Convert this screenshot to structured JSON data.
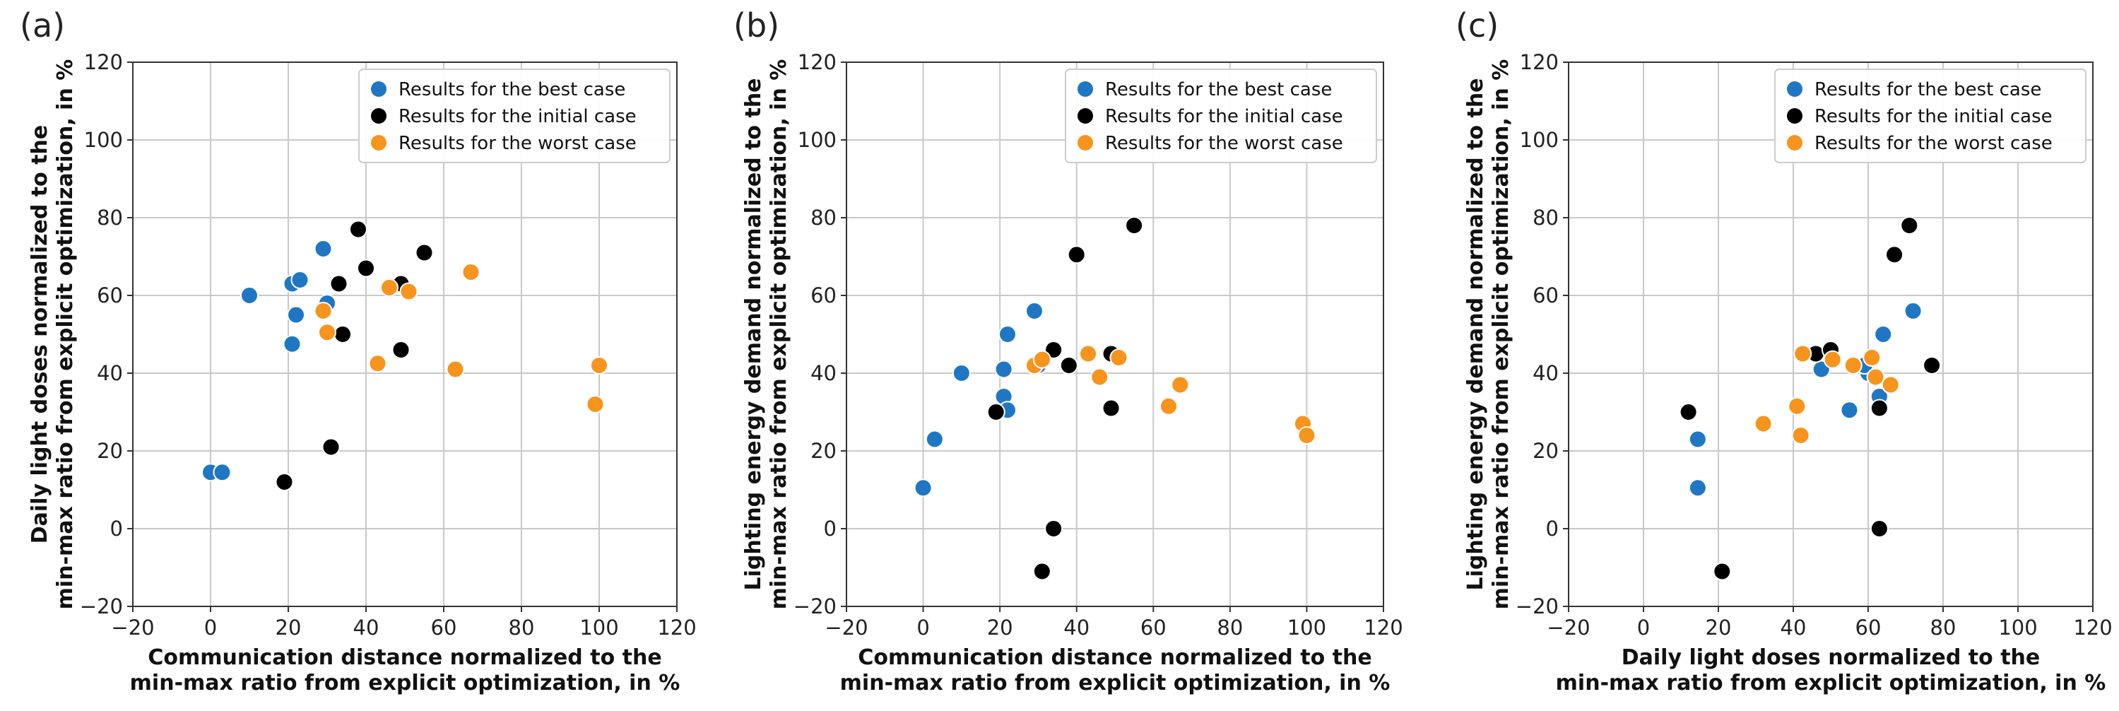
{
  "colors": {
    "best": "#1f77c4",
    "initial": "#000000",
    "worst": "#f7941d",
    "grid": "#c8c8c8"
  },
  "chart_data": [
    {
      "type": "scatter",
      "panel_label": "(a)",
      "xlabel": [
        "Communication distance normalized to the",
        "min-max ratio from explicit optimization, in %"
      ],
      "ylabel": [
        "Daily light doses normalized to the",
        "min-max ratio from explicit optimization, in %"
      ],
      "xlim": [
        -20,
        120
      ],
      "ylim": [
        -20,
        120
      ],
      "xticks": [
        "−20",
        "0",
        "20",
        "40",
        "60",
        "80",
        "100",
        "120"
      ],
      "yticks": [
        "−20",
        "0",
        "20",
        "40",
        "60",
        "80",
        "100",
        "120"
      ],
      "grid": true,
      "legend_position": "top-right",
      "series": [
        {
          "name": "Results for the best case",
          "color_key": "best",
          "points": [
            [
              0,
              14.5
            ],
            [
              3,
              14.5
            ],
            [
              10,
              60
            ],
            [
              21,
              47.5
            ],
            [
              21,
              63
            ],
            [
              22,
              55
            ],
            [
              23,
              64
            ],
            [
              29,
              72
            ],
            [
              30,
              58
            ]
          ]
        },
        {
          "name": "Results for the initial case",
          "color_key": "initial",
          "points": [
            [
              19,
              12
            ],
            [
              31,
              21
            ],
            [
              33,
              63
            ],
            [
              34,
              50
            ],
            [
              38,
              77
            ],
            [
              40,
              67
            ],
            [
              49,
              63
            ],
            [
              49,
              46
            ],
            [
              55,
              71
            ]
          ]
        },
        {
          "name": "Results for the worst case",
          "color_key": "worst",
          "points": [
            [
              29,
              56
            ],
            [
              30,
              50.5
            ],
            [
              43,
              42.5
            ],
            [
              46,
              62
            ],
            [
              51,
              61
            ],
            [
              63,
              41
            ],
            [
              67,
              66
            ],
            [
              99,
              32
            ],
            [
              100,
              42
            ]
          ]
        }
      ]
    },
    {
      "type": "scatter",
      "panel_label": "(b)",
      "xlabel": [
        "Communication distance normalized to the",
        "min-max ratio from explicit optimization, in %"
      ],
      "ylabel": [
        "Lighting energy demand normalized to the",
        "min-max ratio from explicit optimization, in %"
      ],
      "xlim": [
        -20,
        120
      ],
      "ylim": [
        -20,
        120
      ],
      "xticks": [
        "−20",
        "0",
        "20",
        "40",
        "60",
        "80",
        "100",
        "120"
      ],
      "yticks": [
        "−20",
        "0",
        "20",
        "40",
        "60",
        "80",
        "100",
        "120"
      ],
      "grid": true,
      "legend_position": "top-right",
      "series": [
        {
          "name": "Results for the best case",
          "color_key": "best",
          "points": [
            [
              0,
              10.5
            ],
            [
              3,
              23
            ],
            [
              10,
              40
            ],
            [
              21,
              41
            ],
            [
              21,
              34
            ],
            [
              22,
              30.5
            ],
            [
              22,
              50
            ],
            [
              29,
              56
            ],
            [
              30,
              42
            ]
          ]
        },
        {
          "name": "Results for the initial case",
          "color_key": "initial",
          "points": [
            [
              19,
              30
            ],
            [
              31,
              -11
            ],
            [
              34,
              0
            ],
            [
              34,
              46
            ],
            [
              38,
              42
            ],
            [
              40,
              70.5
            ],
            [
              49,
              31
            ],
            [
              49,
              45
            ],
            [
              55,
              78
            ]
          ]
        },
        {
          "name": "Results for the worst case",
          "color_key": "worst",
          "points": [
            [
              29,
              42
            ],
            [
              31,
              43.5
            ],
            [
              43,
              45
            ],
            [
              46,
              39
            ],
            [
              51,
              44
            ],
            [
              64,
              31.5
            ],
            [
              67,
              37
            ],
            [
              99,
              27
            ],
            [
              100,
              24
            ]
          ]
        }
      ]
    },
    {
      "type": "scatter",
      "panel_label": "(c)",
      "xlabel": [
        "Daily light doses normalized to the",
        "min-max ratio from explicit optimization, in %"
      ],
      "ylabel": [
        "Lighting energy demand normalized to the",
        "min-max ratio from explicit optimization, in %"
      ],
      "xlim": [
        -20,
        120
      ],
      "ylim": [
        -20,
        120
      ],
      "xticks": [
        "−20",
        "0",
        "20",
        "40",
        "60",
        "80",
        "100",
        "120"
      ],
      "yticks": [
        "−20",
        "0",
        "20",
        "40",
        "60",
        "80",
        "100",
        "120"
      ],
      "grid": true,
      "legend_position": "top-right",
      "series": [
        {
          "name": "Results for the best case",
          "color_key": "best",
          "points": [
            [
              14.5,
              10.5
            ],
            [
              14.5,
              23
            ],
            [
              47.5,
              41
            ],
            [
              55,
              30.5
            ],
            [
              60,
              40
            ],
            [
              63,
              34
            ],
            [
              64,
              50
            ],
            [
              72,
              56
            ],
            [
              59,
              42
            ]
          ]
        },
        {
          "name": "Results for the initial case",
          "color_key": "initial",
          "points": [
            [
              12,
              30
            ],
            [
              21,
              -11
            ],
            [
              46,
              45
            ],
            [
              50,
              46
            ],
            [
              63,
              0
            ],
            [
              63,
              31
            ],
            [
              67,
              70.5
            ],
            [
              71,
              78
            ],
            [
              77,
              42
            ]
          ]
        },
        {
          "name": "Results for the worst case",
          "color_key": "worst",
          "points": [
            [
              32,
              27
            ],
            [
              41,
              31.5
            ],
            [
              42,
              24
            ],
            [
              42.5,
              45
            ],
            [
              50.5,
              43.5
            ],
            [
              56,
              42
            ],
            [
              61,
              44
            ],
            [
              62,
              39
            ],
            [
              66,
              37
            ]
          ]
        }
      ]
    }
  ]
}
